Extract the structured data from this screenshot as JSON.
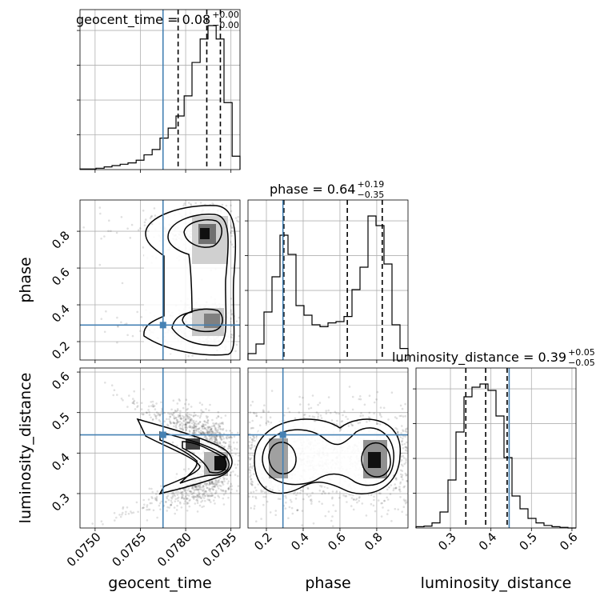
{
  "chart_data": {
    "type": "corner",
    "params": [
      "geocent_time",
      "phase",
      "luminosity_distance"
    ],
    "truth": {
      "geocent_time": 0.07725,
      "phase": 0.29,
      "luminosity_distance": 0.445
    },
    "colors": {
      "truth": "#4682b4",
      "hist": "#000000",
      "grid": "#b0b0b0"
    },
    "titles": {
      "geocent_time": {
        "label": "geocent_time = 0.08",
        "plus": "+0.00",
        "minus": "−0.00"
      },
      "phase": {
        "label": "phase = 0.64",
        "plus": "+0.19",
        "minus": "−0.35"
      },
      "luminosity_distance": {
        "label": "luminosity_distance = 0.39",
        "plus": "+0.05",
        "minus": "−0.05"
      }
    },
    "axes": {
      "geocent_time": {
        "range": [
          0.0745,
          0.0798
        ],
        "ticks": [
          0.075,
          0.0765,
          0.078,
          0.0795
        ],
        "tick_labels": [
          "0.0750",
          "0.0765",
          "0.0780",
          "0.0795"
        ],
        "xlabel": "geocent_time"
      },
      "phase": {
        "range": [
          0.1,
          0.97
        ],
        "ticks": [
          0.2,
          0.4,
          0.6,
          0.8
        ],
        "tick_labels": [
          "0.2",
          "0.4",
          "0.6",
          "0.8"
        ],
        "xlabel": "phase",
        "ylabel": "phase"
      },
      "luminosity_distance": {
        "range": [
          0.215,
          0.61
        ],
        "ticks": [
          0.3,
          0.4,
          0.5,
          0.6
        ],
        "tick_labels": [
          "0.3",
          "0.4",
          "0.5",
          "0.6"
        ],
        "xlabel": "luminosity_distance",
        "ylabel": "luminosity_distance"
      }
    },
    "histograms": {
      "geocent_time": {
        "edges": [
          0.0745,
          0.07477,
          0.07503,
          0.0753,
          0.07556,
          0.07583,
          0.07609,
          0.07636,
          0.07662,
          0.07689,
          0.07715,
          0.07742,
          0.07768,
          0.07795,
          0.07821,
          0.07848,
          0.07874,
          0.07901,
          0.07927,
          0.07954,
          0.0798
        ],
        "counts": [
          1,
          1,
          2,
          4,
          6,
          8,
          10,
          14,
          22,
          30,
          47,
          62,
          80,
          110,
          160,
          195,
          215,
          195,
          100,
          20
        ],
        "quantiles": [
          0.07775,
          0.0787,
          0.07915
        ]
      },
      "phase": {
        "edges": [
          0.1,
          0.1435,
          0.187,
          0.2305,
          0.274,
          0.3175,
          0.361,
          0.4045,
          0.448,
          0.4915,
          0.535,
          0.5785,
          0.622,
          0.6655,
          0.709,
          0.7525,
          0.796,
          0.8395,
          0.883,
          0.9265,
          0.97
        ],
        "counts": [
          10,
          25,
          75,
          130,
          195,
          165,
          85,
          70,
          55,
          52,
          58,
          60,
          68,
          110,
          145,
          225,
          210,
          150,
          55,
          18
        ],
        "quantiles": [
          0.295,
          0.64,
          0.83
        ]
      },
      "luminosity_distance": {
        "edges": [
          0.215,
          0.23475,
          0.2545,
          0.27425,
          0.294,
          0.31375,
          0.3335,
          0.35325,
          0.373,
          0.39275,
          0.4125,
          0.43225,
          0.452,
          0.47175,
          0.4915,
          0.51125,
          0.531,
          0.55075,
          0.5705,
          0.59025,
          0.61
        ],
        "counts": [
          2,
          3,
          8,
          25,
          75,
          150,
          205,
          220,
          225,
          215,
          175,
          110,
          50,
          30,
          15,
          8,
          4,
          2,
          1,
          0
        ],
        "quantiles": [
          0.338,
          0.387,
          0.44
        ]
      }
    },
    "contour_levels": 3
  }
}
